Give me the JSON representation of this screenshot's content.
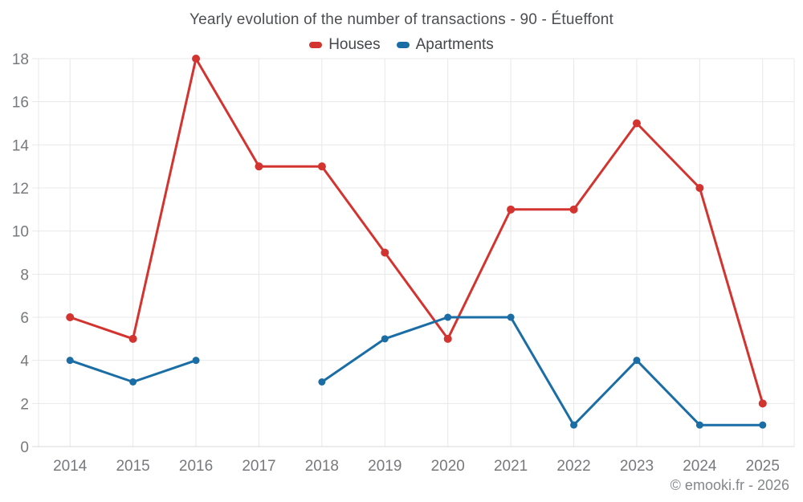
{
  "header": {
    "title": "Yearly evolution of the number of transactions - 90 - Étueffont"
  },
  "footer": {
    "credit": "© emooki.fr - 2026"
  },
  "chart_data": {
    "type": "line",
    "title": "Yearly evolution of the number of transactions - 90 - Étueffont",
    "categories": [
      "2014",
      "2015",
      "2016",
      "2017",
      "2018",
      "2019",
      "2020",
      "2021",
      "2022",
      "2023",
      "2024",
      "2025"
    ],
    "series": [
      {
        "name": "Houses",
        "color": "#d33430",
        "marker": "circle",
        "values": [
          6,
          5,
          18,
          13,
          13,
          9,
          5,
          11,
          11,
          15,
          12,
          2
        ]
      },
      {
        "name": "Apartments",
        "color": "#1b6ea5",
        "marker": "circle",
        "values": [
          4,
          3,
          4,
          null,
          3,
          5,
          6,
          6,
          1,
          4,
          1,
          1
        ]
      }
    ],
    "xlabel": "",
    "ylabel": "",
    "ylim": [
      0,
      18
    ],
    "yticks": [
      0,
      2,
      4,
      6,
      8,
      10,
      12,
      14,
      16,
      18
    ],
    "grid": true,
    "grid_color": "#e8e8e8",
    "axis_color": "#d9d9d9",
    "legend_position": "top",
    "note": "Apartments series has no data point for 2017 (gap in line)"
  }
}
